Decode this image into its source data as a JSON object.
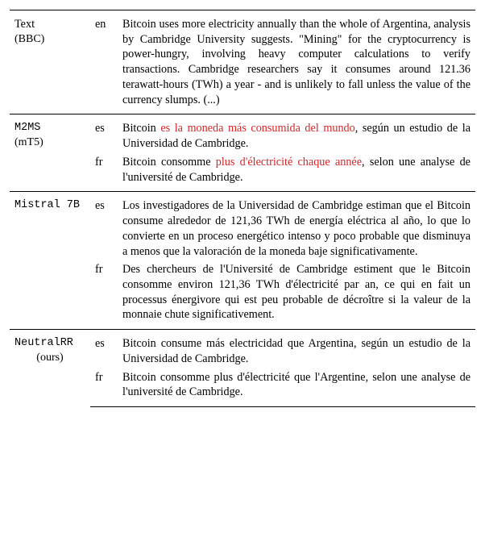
{
  "rows": [
    {
      "label_line1": "Text",
      "label_line2": "(BBC)",
      "label_mono": false,
      "langs": [
        "en"
      ],
      "texts": [
        {
          "segments": [
            {
              "t": "Bitcoin uses more electricity annually than the whole of Argentina, analysis by Cambridge University suggests.  \"Mining\" for the cryptocurrency is power-hungry, involving heavy computer calculations to verify transactions.  Cambridge researchers say it consumes around 121.36 terawatt-hours (TWh) a year - and is unlikely to fall unless the value of the currency slumps. (...)"
            }
          ]
        }
      ]
    },
    {
      "label_line1": "M2MS",
      "label_line2": "(mT5)",
      "label_mono": true,
      "langs": [
        "es",
        "fr"
      ],
      "texts": [
        {
          "segments": [
            {
              "t": "Bitcoin "
            },
            {
              "t": "es la moneda más consumida del mundo",
              "red": true
            },
            {
              "t": ", según un estudio de la Universidad de Cambridge."
            }
          ]
        },
        {
          "segments": [
            {
              "t": "Bitcoin consomme "
            },
            {
              "t": "plus d'électricité chaque année",
              "red": true
            },
            {
              "t": ", selon une analyse de l'université de Cambridge."
            }
          ]
        }
      ]
    },
    {
      "label_line1": "Mistral 7B",
      "label_line2": "",
      "label_mono": true,
      "langs": [
        "es",
        "fr"
      ],
      "texts": [
        {
          "segments": [
            {
              "t": "Los investigadores de la Universidad de Cambridge estiman que el Bitcoin consume alrededor de 121,36 TWh de energía eléctrica al año, lo que lo convierte en un proceso energético intenso y poco probable que disminuya a menos que la valoración de la moneda baje significativamente."
            }
          ]
        },
        {
          "segments": [
            {
              "t": "Des chercheurs de l'Université de Cambridge estiment que le Bitcoin consomme environ 121,36 TWh d'électricité par an, ce qui en fait un processus énergivore qui est peu probable de décroître si la valeur de la monnaie chute significativement."
            }
          ]
        }
      ]
    },
    {
      "label_line1": "NeutralRR",
      "label_line2": "(ours)",
      "label_mono": true,
      "langs": [
        "es",
        "fr"
      ],
      "texts": [
        {
          "segments": [
            {
              "t": "Bitcoin consume más electricidad que Argentina, según un estudio de la Universidad de Cambridge."
            }
          ]
        },
        {
          "segments": [
            {
              "t": "Bitcoin consomme plus d'électricité que l'Argentine, selon une analyse de l'université de Cambridge."
            }
          ]
        }
      ]
    }
  ]
}
